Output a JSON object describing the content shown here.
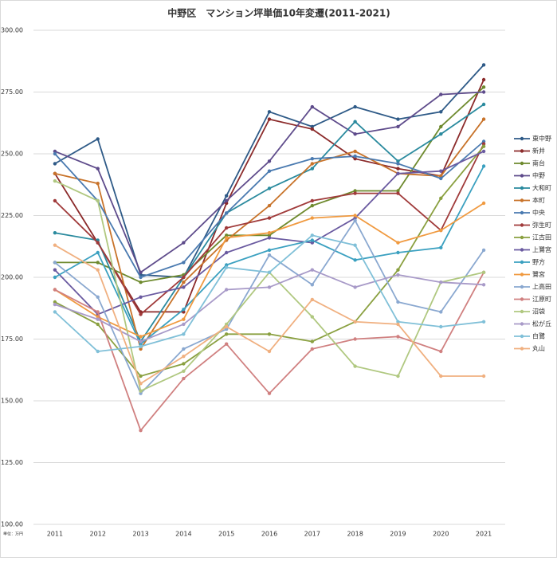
{
  "chart_data": {
    "type": "line",
    "title": "中野区　マンション坪単価10年変遷(2011-2021)",
    "note": "単位：万円",
    "categories": [
      "2011",
      "2012",
      "2013",
      "2014",
      "2015",
      "2016",
      "2017",
      "2018",
      "2019",
      "2020",
      "2021"
    ],
    "ylim": [
      100,
      300
    ],
    "yticks": [
      {
        "value": 100,
        "label": "100.00"
      },
      {
        "value": 125,
        "label": "125.00"
      },
      {
        "value": 150,
        "label": "150.00"
      },
      {
        "value": 175,
        "label": "175.00"
      },
      {
        "value": 200,
        "label": "200.00"
      },
      {
        "value": 225,
        "label": "225.00"
      },
      {
        "value": 250,
        "label": "250.00"
      },
      {
        "value": 275,
        "label": "275.00"
      },
      {
        "value": 300,
        "label": "300.00"
      }
    ],
    "grid": true,
    "series": [
      {
        "name": "東中野",
        "color": "#2e5a87",
        "values": [
          246,
          256,
          201,
          200,
          233,
          267,
          261,
          269,
          264,
          267,
          286
        ]
      },
      {
        "name": "新井",
        "color": "#8b2a2a",
        "values": [
          242,
          214,
          186,
          186,
          230,
          264,
          260,
          248,
          244,
          241,
          280
        ]
      },
      {
        "name": "南台",
        "color": "#6e8a2e",
        "values": [
          206,
          206,
          198,
          201,
          217,
          217,
          229,
          235,
          235,
          261,
          277
        ]
      },
      {
        "name": "中野",
        "color": "#5e4b8b",
        "values": [
          251,
          244,
          202,
          214,
          231,
          247,
          269,
          258,
          261,
          274,
          275
        ]
      },
      {
        "name": "大和町",
        "color": "#2a8a9e",
        "values": [
          218,
          215,
          174,
          200,
          226,
          236,
          244,
          263,
          247,
          258,
          270
        ]
      },
      {
        "name": "本町",
        "color": "#c8732a",
        "values": [
          242,
          238,
          171,
          198,
          215,
          229,
          246,
          251,
          242,
          241,
          264
        ]
      },
      {
        "name": "中央",
        "color": "#4a7ab0",
        "values": [
          250,
          231,
          200,
          206,
          226,
          243,
          248,
          249,
          246,
          240,
          255
        ]
      },
      {
        "name": "弥生町",
        "color": "#a03a3a",
        "values": [
          231,
          214,
          185,
          200,
          220,
          224,
          231,
          234,
          234,
          219,
          254
        ]
      },
      {
        "name": "江古田",
        "color": "#8aa040",
        "values": [
          190,
          181,
          160,
          165,
          177,
          177,
          174,
          182,
          203,
          232,
          253
        ]
      },
      {
        "name": "上鷺宮",
        "color": "#6a5aa0",
        "values": [
          203,
          185,
          192,
          196,
          210,
          216,
          214,
          224,
          242,
          243,
          251
        ]
      },
      {
        "name": "野方",
        "color": "#3aa0c0",
        "values": [
          200,
          210,
          173,
          187,
          205,
          211,
          215,
          207,
          210,
          212,
          245
        ]
      },
      {
        "name": "鷺宮",
        "color": "#f09a40",
        "values": [
          195,
          184,
          176,
          183,
          216,
          218,
          224,
          225,
          214,
          219,
          230
        ]
      },
      {
        "name": "上高田",
        "color": "#8aa8d0",
        "values": [
          206,
          192,
          153,
          171,
          179,
          209,
          197,
          223,
          190,
          186,
          211
        ]
      },
      {
        "name": "江原町",
        "color": "#d08080",
        "values": [
          195,
          186,
          138,
          159,
          173,
          153,
          171,
          175,
          176,
          170,
          202
        ]
      },
      {
        "name": "沼袋",
        "color": "#b0c880",
        "values": [
          239,
          231,
          154,
          162,
          181,
          202,
          184,
          164,
          160,
          198,
          202
        ]
      },
      {
        "name": "松が丘",
        "color": "#a89ac8",
        "values": [
          189,
          183,
          174,
          181,
          195,
          196,
          203,
          196,
          201,
          198,
          197
        ]
      },
      {
        "name": "白鷺",
        "color": "#80c0d8",
        "values": [
          186,
          170,
          172,
          177,
          204,
          202,
          217,
          213,
          182,
          180,
          182
        ]
      },
      {
        "name": "丸山",
        "color": "#f0b080",
        "values": [
          213,
          203,
          157,
          168,
          180,
          170,
          191,
          182,
          181,
          160,
          160
        ]
      }
    ]
  }
}
